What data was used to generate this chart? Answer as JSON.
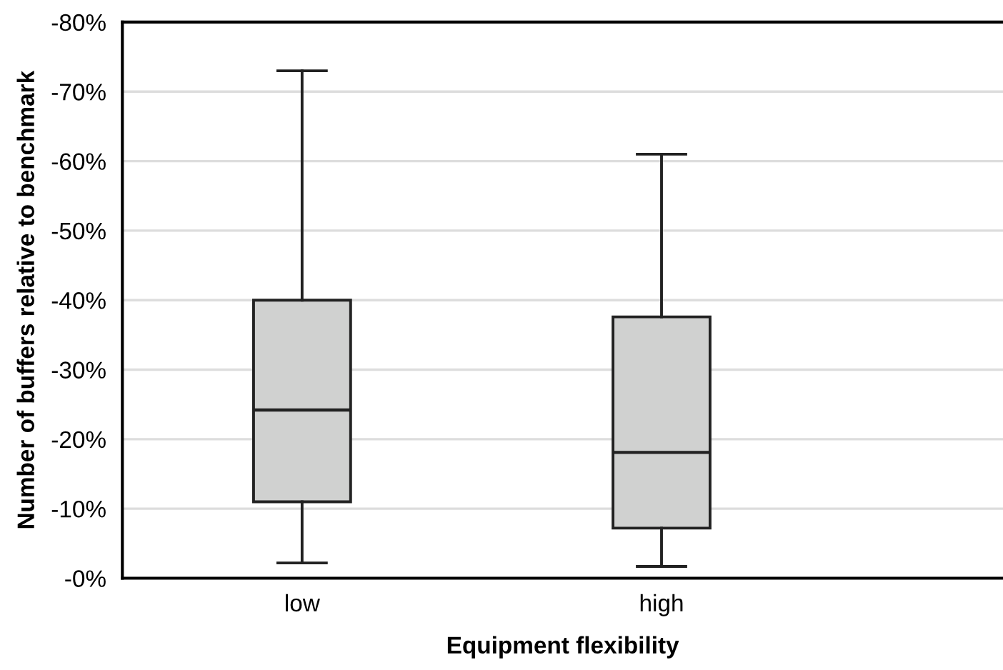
{
  "chart_data": {
    "type": "box",
    "xlabel": "Equipment flexibility",
    "ylabel": "Number of buffers relative to benchmark",
    "categories": [
      "low",
      "high"
    ],
    "color": "#d0d1d0",
    "boxes": [
      {
        "low": -73,
        "q1": -40,
        "median": -24.2,
        "q3": -11,
        "high": -2.2
      },
      {
        "low": -61,
        "q1": -37.6,
        "median": -18.1,
        "q3": -7.2,
        "high": -1.7
      }
    ],
    "ylim": [
      0,
      -80
    ],
    "yticks": [
      {
        "value": 0,
        "label": "-0%"
      },
      {
        "value": -10,
        "label": "-10%"
      },
      {
        "value": -20,
        "label": "-20%"
      },
      {
        "value": -30,
        "label": "-30%"
      },
      {
        "value": -40,
        "label": "-40%"
      },
      {
        "value": -50,
        "label": "-50%"
      },
      {
        "value": -60,
        "label": "-60%"
      },
      {
        "value": -70,
        "label": "-70%"
      },
      {
        "value": -80,
        "label": "-80%"
      }
    ],
    "grid": "y",
    "legend": false
  }
}
